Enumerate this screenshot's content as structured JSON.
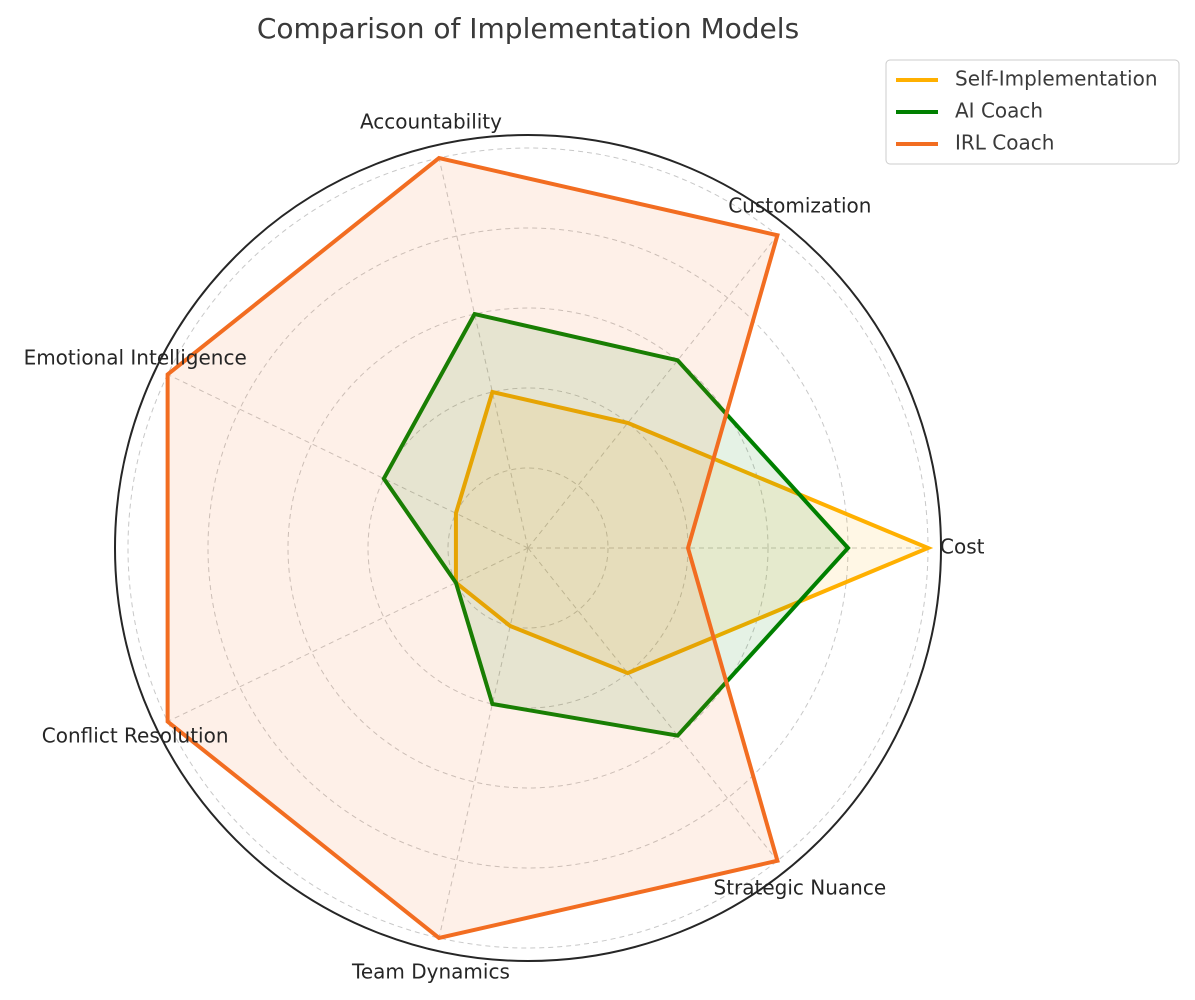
{
  "chart_data": {
    "type": "radar",
    "title": "Comparison of Implementation Models",
    "axes": [
      "Cost",
      "Customization",
      "Accountability",
      "Emotional Intelligence",
      "Conflict Resolution",
      "Team Dynamics",
      "Strategic Nuance"
    ],
    "rlim": [
      0,
      5
    ],
    "grid": true,
    "legend_position": "top-right",
    "series": [
      {
        "name": "Self-Implementation",
        "color": "#FFB000",
        "values": [
          5,
          2,
          2,
          1,
          1,
          1,
          2
        ]
      },
      {
        "name": "AI Coach",
        "color": "#008000",
        "values": [
          4,
          3,
          3,
          2,
          1,
          2,
          3
        ]
      },
      {
        "name": "IRL Coach",
        "color": "#F26D21",
        "values": [
          2,
          5,
          5,
          5,
          5,
          5,
          5
        ]
      }
    ]
  }
}
